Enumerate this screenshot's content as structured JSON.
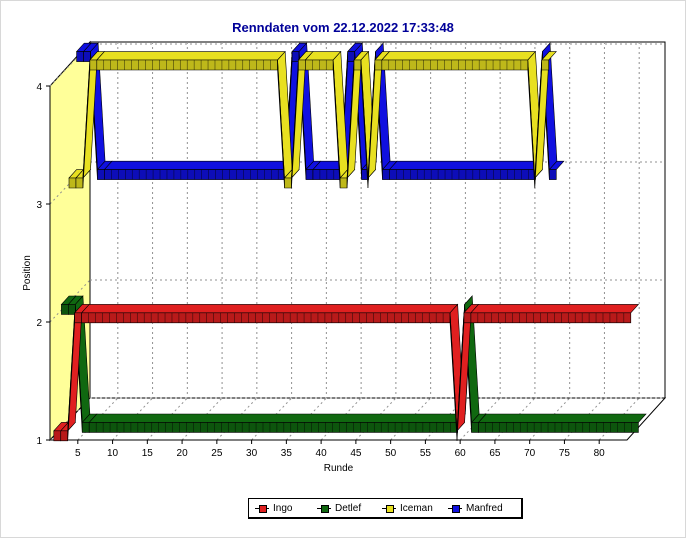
{
  "chart_data": {
    "type": "line",
    "title": "Renndaten vom 22.12.2022 17:33:48",
    "xlabel": "Runde",
    "ylabel": "Position",
    "xlim": [
      1,
      84
    ],
    "ylim": [
      1,
      4
    ],
    "x_ticks": [
      5,
      10,
      15,
      20,
      25,
      30,
      35,
      40,
      45,
      50,
      55,
      60,
      65,
      70,
      75,
      80
    ],
    "y_ticks": [
      1,
      2,
      3,
      4
    ],
    "grid": true,
    "legend": "bottom",
    "view": "3d",
    "series": [
      {
        "name": "Ingo",
        "color": "#e02020",
        "points": [
          [
            1,
            1
          ],
          [
            2,
            1
          ],
          [
            3,
            1
          ],
          [
            4,
            2
          ],
          [
            5,
            2
          ],
          [
            58,
            2
          ],
          [
            59,
            1
          ],
          [
            60,
            2
          ],
          [
            61,
            2
          ],
          [
            84,
            2
          ]
        ]
      },
      {
        "name": "Detlef",
        "color": "#106810",
        "points": [
          [
            1,
            2
          ],
          [
            2,
            2
          ],
          [
            3,
            2
          ],
          [
            4,
            1
          ],
          [
            5,
            1
          ],
          [
            58,
            1
          ],
          [
            59,
            2
          ],
          [
            60,
            1
          ],
          [
            61,
            1
          ],
          [
            84,
            1
          ]
        ]
      },
      {
        "name": "Iceman",
        "color": "#e8e020",
        "points": [
          [
            1,
            3
          ],
          [
            2,
            3
          ],
          [
            3,
            3
          ],
          [
            4,
            4
          ],
          [
            5,
            4
          ],
          [
            31,
            4
          ],
          [
            32,
            3
          ],
          [
            33,
            3
          ],
          [
            34,
            4
          ],
          [
            35,
            4
          ],
          [
            39,
            4
          ],
          [
            40,
            3
          ],
          [
            41,
            3
          ],
          [
            42,
            4
          ],
          [
            43,
            4
          ],
          [
            44,
            3
          ],
          [
            45,
            4
          ],
          [
            46,
            4
          ],
          [
            67,
            4
          ],
          [
            68,
            3
          ],
          [
            69,
            4
          ],
          [
            70,
            4
          ]
        ]
      },
      {
        "name": "Manfred",
        "color": "#1010e0",
        "points": [
          [
            1,
            4
          ],
          [
            2,
            4
          ],
          [
            3,
            4
          ],
          [
            4,
            3
          ],
          [
            5,
            3
          ],
          [
            31,
            3
          ],
          [
            32,
            4
          ],
          [
            33,
            4
          ],
          [
            34,
            3
          ],
          [
            35,
            3
          ],
          [
            39,
            3
          ],
          [
            40,
            4
          ],
          [
            41,
            4
          ],
          [
            42,
            3
          ],
          [
            43,
            3
          ],
          [
            44,
            4
          ],
          [
            45,
            3
          ],
          [
            46,
            3
          ],
          [
            67,
            3
          ],
          [
            68,
            4
          ],
          [
            69,
            3
          ],
          [
            70,
            3
          ]
        ]
      }
    ]
  }
}
